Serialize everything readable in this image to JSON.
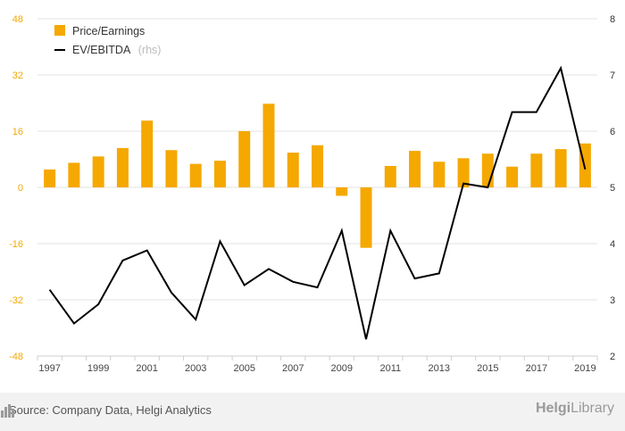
{
  "chart_data": {
    "type": "bar+line",
    "categories": [
      "1997",
      "1998",
      "1999",
      "2000",
      "2001",
      "2002",
      "2003",
      "2004",
      "2005",
      "2006",
      "2007",
      "2008",
      "2009",
      "2010",
      "2011",
      "2012",
      "2013",
      "2014",
      "2015",
      "2016",
      "2017",
      "2018",
      "2019"
    ],
    "x_tick_labels": [
      "1997",
      "1999",
      "2001",
      "2003",
      "2005",
      "2007",
      "2009",
      "2011",
      "2013",
      "2015",
      "2017",
      "2019"
    ],
    "series": [
      {
        "name": "Price/Earnings",
        "type": "bar",
        "axis": "left",
        "color": "#f5a800",
        "values": [
          5.1,
          7.0,
          8.8,
          11.2,
          19.0,
          10.6,
          6.7,
          7.6,
          16.0,
          23.8,
          9.9,
          12.0,
          -2.4,
          -17.2,
          6.1,
          10.4,
          7.3,
          8.3,
          9.6,
          5.9,
          9.6,
          10.9,
          12.5
        ]
      },
      {
        "name": "EV/EBITDA",
        "name_suffix": "(rhs)",
        "type": "line",
        "axis": "right",
        "color": "#000000",
        "values": [
          3.18,
          2.58,
          2.92,
          3.7,
          3.88,
          3.13,
          2.65,
          4.04,
          3.26,
          3.55,
          3.32,
          3.22,
          4.23,
          2.3,
          4.23,
          3.38,
          3.47,
          5.07,
          5.0,
          6.34,
          6.34,
          7.12,
          5.32
        ]
      }
    ],
    "y_left": {
      "min": -48,
      "max": 48,
      "ticks": [
        -48,
        -32,
        -16,
        0,
        16,
        32,
        48
      ],
      "color": "#f5a800"
    },
    "y_right": {
      "min": 2,
      "max": 8,
      "ticks": [
        2,
        3,
        4,
        5,
        6,
        7,
        8
      ]
    },
    "legend_position": "top-left",
    "grid": "horizontal"
  },
  "footer": {
    "source": "Source: Company Data, Helgi Analytics",
    "brand_main": "Helgi",
    "brand_lib": "Library",
    "brand_icon": "city-skyline-icon"
  }
}
